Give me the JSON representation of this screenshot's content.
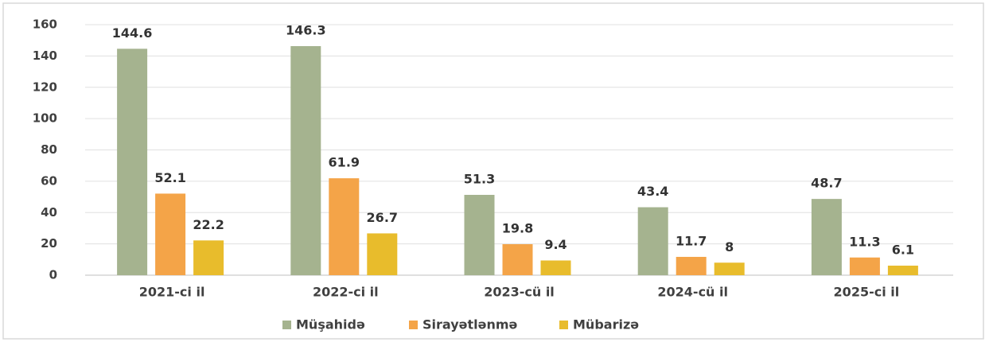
{
  "chart_data": {
    "type": "bar",
    "categories": [
      "2021-ci il",
      "2022-ci il",
      "2023-cü il",
      "2024-cü il",
      "2025-ci il"
    ],
    "series": [
      {
        "name": "Müşahidə",
        "color": "#a5b38f",
        "values": [
          144.6,
          146.3,
          51.3,
          43.4,
          48.7
        ]
      },
      {
        "name": "Sirayətlənmə",
        "color": "#f4a448",
        "values": [
          52.1,
          61.9,
          19.8,
          11.7,
          11.3
        ]
      },
      {
        "name": "Mübarizə",
        "color": "#e8bc2c",
        "values": [
          22.2,
          26.7,
          9.4,
          8,
          6.1
        ]
      }
    ],
    "ylim": [
      0,
      160
    ],
    "yticks": [
      0,
      20,
      40,
      60,
      80,
      100,
      120,
      140,
      160
    ],
    "grid": true,
    "legend": "bottom"
  }
}
